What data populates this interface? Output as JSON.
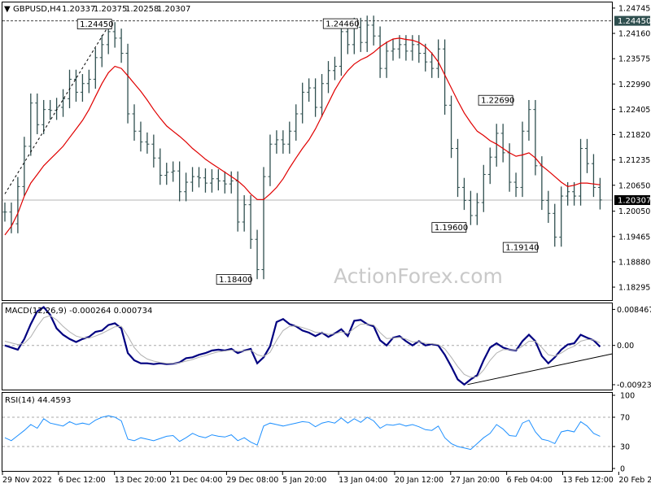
{
  "chart_data": [
    {
      "type": "bar",
      "panel": "price",
      "symbol_header": "GBPUSD,H4",
      "ohlc_header": [
        "1.20337",
        "1.20375",
        "1.20258",
        "1.20307"
      ],
      "y_ticks": [
        "1.24745",
        "1.24160",
        "1.23575",
        "1.22990",
        "1.22405",
        "1.21820",
        "1.21235",
        "1.20650",
        "1.20050",
        "1.19465",
        "1.18880",
        "1.18295"
      ],
      "ylim": [
        1.17995,
        1.24875
      ],
      "current_price": 1.20307,
      "current_label": "1.20307",
      "high_line_value": 1.2445,
      "high_line_label": "1.24450",
      "annotations": [
        {
          "text": "1.24450",
          "x": 16.5,
          "y": 1.2445
        },
        {
          "text": "1.24460",
          "x": 54.5,
          "y": 1.2446
        },
        {
          "text": "1.18400",
          "x": 38.0,
          "y": 1.184
        },
        {
          "text": "1.22690",
          "x": 78.5,
          "y": 1.2269
        },
        {
          "text": "1.19600",
          "x": 71.3,
          "y": 1.196
        },
        {
          "text": "1.19140",
          "x": 82.3,
          "y": 1.1914
        }
      ],
      "trendline": [
        [
          0,
          1.2045
        ],
        [
          16.5,
          1.2445
        ]
      ],
      "series": [
        {
          "name": "Close",
          "color": "#2f4f4f",
          "x": [
            0,
            1,
            2,
            3,
            4,
            5,
            6,
            7,
            8,
            9,
            10,
            11,
            12,
            13,
            14,
            15,
            16,
            17,
            18,
            19,
            20,
            21,
            22,
            23,
            24,
            25,
            26,
            27,
            28,
            29,
            30,
            31,
            32,
            33,
            34,
            35,
            36,
            37,
            38,
            39,
            40,
            41,
            42,
            43,
            44,
            45,
            46,
            47,
            48,
            49,
            50,
            51,
            52,
            53,
            54,
            55,
            56,
            57,
            58,
            59,
            60,
            61,
            62,
            63,
            64,
            65,
            66,
            67,
            68,
            69,
            70,
            71,
            72,
            73,
            74,
            75,
            76,
            77,
            78,
            79,
            80,
            81,
            82,
            83,
            84,
            85,
            86,
            87,
            88,
            89,
            90,
            91,
            92
          ],
          "y": [
            1.2003,
            1.1976,
            1.2062,
            1.2155,
            1.2255,
            1.2205,
            1.224,
            1.2238,
            1.2245,
            1.2265,
            1.231,
            1.228,
            1.23,
            1.231,
            1.236,
            1.239,
            1.242,
            1.2405,
            1.237,
            1.223,
            1.219,
            1.2165,
            1.216,
            1.2128,
            1.2088,
            1.2095,
            1.2098,
            1.205,
            1.2072,
            1.2085,
            1.2082,
            1.207,
            1.208,
            1.2075,
            1.2068,
            1.2075,
            1.198,
            1.202,
            1.194,
            1.187,
            1.2085,
            1.216,
            1.217,
            1.216,
            1.219,
            1.223,
            1.228,
            1.229,
            1.2245,
            1.23,
            1.233,
            1.234,
            1.242,
            1.239,
            1.243,
            1.2395,
            1.2435,
            1.241,
            1.2335,
            1.2375,
            1.238,
            1.239,
            1.2375,
            1.239,
            1.237,
            1.235,
            1.2335,
            1.238,
            1.225,
            1.215,
            1.206,
            1.203,
            1.1995,
            1.2025,
            1.209,
            1.213,
            1.2185,
            1.214,
            1.2072,
            1.206,
            1.219,
            1.224,
            1.211,
            1.203,
            1.2,
            1.1945,
            1.204,
            1.205,
            1.204,
            1.215,
            1.2115,
            1.206,
            1.2031
          ]
        }
      ],
      "ma_series": {
        "name": "MA",
        "color": "#e00000",
        "y": [
          1.195,
          1.197,
          1.2,
          1.204,
          1.207,
          1.209,
          1.211,
          1.2125,
          1.214,
          1.2155,
          1.2175,
          1.2195,
          1.2215,
          1.224,
          1.227,
          1.23,
          1.2325,
          1.234,
          1.2335,
          1.2318,
          1.23,
          1.2282,
          1.2262,
          1.224,
          1.222,
          1.2202,
          1.219,
          1.2178,
          1.2165,
          1.215,
          1.2138,
          1.2125,
          1.2115,
          1.2105,
          1.2095,
          1.2085,
          1.2075,
          1.2062,
          1.2045,
          1.2032,
          1.2032,
          1.2045,
          1.206,
          1.208,
          1.2105,
          1.2128,
          1.215,
          1.217,
          1.2195,
          1.2225,
          1.2255,
          1.2285,
          1.231,
          1.233,
          1.2345,
          1.2355,
          1.2362,
          1.2372,
          1.2385,
          1.2395,
          1.2403,
          1.2405,
          1.2402,
          1.24,
          1.2395,
          1.2385,
          1.237,
          1.235,
          1.232,
          1.229,
          1.226,
          1.2232,
          1.221,
          1.219,
          1.218,
          1.2168,
          1.216,
          1.215,
          1.214,
          1.2132,
          1.2135,
          1.214,
          1.2128,
          1.211,
          1.2098,
          1.2085,
          1.2072,
          1.2062,
          1.2065,
          1.207,
          1.207,
          1.2068,
          1.2066
        ]
      }
    },
    {
      "type": "line",
      "panel": "macd",
      "header": "MACD(12,26,9) -0.000264 0.000734",
      "y_ticks": [
        "0.008467",
        "0.00",
        "-0.009233"
      ],
      "ylim": [
        -0.01,
        0.0095
      ],
      "series": [
        {
          "name": "MACD",
          "color": "#000080",
          "y": [
            0.0,
            -0.0005,
            -0.001,
            0.0015,
            0.005,
            0.008,
            0.009,
            0.0072,
            0.004,
            0.0025,
            0.0015,
            0.0008,
            0.0015,
            0.002,
            0.0032,
            0.0035,
            0.0048,
            0.0052,
            0.004,
            -0.0018,
            -0.0035,
            -0.0042,
            -0.0042,
            -0.0044,
            -0.0042,
            -0.0044,
            -0.0043,
            -0.004,
            -0.003,
            -0.0028,
            -0.0022,
            -0.0018,
            -0.0012,
            -0.001,
            -0.0012,
            -0.0008,
            -0.0018,
            -0.0012,
            -0.0008,
            -0.0042,
            -0.0028,
            -0.0002,
            0.0055,
            0.0062,
            0.005,
            0.0045,
            0.0035,
            0.003,
            0.0022,
            0.003,
            0.002,
            0.0028,
            0.0038,
            0.0022,
            0.0058,
            0.006,
            0.005,
            0.0045,
            0.0012,
            0.0,
            0.0018,
            0.0022,
            0.001,
            0.0,
            0.001,
            0.0,
            0.0003,
            0.0,
            -0.0022,
            -0.005,
            -0.008,
            -0.0092,
            -0.008,
            -0.007,
            -0.0035,
            -0.0005,
            0.0005,
            -0.0005,
            -0.001,
            -0.0012,
            0.001,
            0.0025,
            0.001,
            -0.0025,
            -0.0042,
            -0.0028,
            -0.001,
            0.0002,
            0.0005,
            0.0025,
            0.0018,
            0.0012,
            -0.0003
          ]
        },
        {
          "name": "Signal",
          "color": "#b0b0b0",
          "y": [
            0.001,
            0.0006,
            0.0002,
            0.0005,
            0.002,
            0.0045,
            0.0065,
            0.007,
            0.006,
            0.0045,
            0.0032,
            0.0022,
            0.0018,
            0.0017,
            0.0022,
            0.0028,
            0.0036,
            0.0044,
            0.0045,
            0.0022,
            -0.0005,
            -0.0022,
            -0.0032,
            -0.0037,
            -0.004,
            -0.0042,
            -0.0042,
            -0.0041,
            -0.0037,
            -0.0033,
            -0.0028,
            -0.0024,
            -0.0019,
            -0.0015,
            -0.0013,
            -0.0011,
            -0.0014,
            -0.0013,
            -0.0011,
            -0.0022,
            -0.0026,
            -0.0016,
            0.0012,
            0.0035,
            0.0045,
            0.0046,
            0.0042,
            0.0037,
            0.0031,
            0.003,
            0.0026,
            0.0027,
            0.0032,
            0.0028,
            0.004,
            0.005,
            0.005,
            0.0048,
            0.003,
            0.0016,
            0.0017,
            0.0019,
            0.0015,
            0.0008,
            0.0009,
            0.0005,
            0.0004,
            0.0002,
            -0.0008,
            -0.0028,
            -0.005,
            -0.0068,
            -0.0075,
            -0.0074,
            -0.0058,
            -0.0035,
            -0.0018,
            -0.001,
            -0.001,
            -0.0011,
            -0.0002,
            0.001,
            0.001,
            -0.0005,
            -0.0022,
            -0.0025,
            -0.0018,
            -0.0008,
            -0.0002,
            0.001,
            0.0014,
            0.0013,
            0.0006
          ]
        }
      ],
      "trendline": [
        [
          71.5,
          -0.0092
        ],
        [
          92,
          -0.002
        ]
      ]
    },
    {
      "type": "line",
      "panel": "rsi",
      "header": "RSI(14) 44.4593",
      "y_ticks": [
        "100",
        "70",
        "30",
        "0"
      ],
      "ylim": [
        0,
        100
      ],
      "levels": [
        70,
        30
      ],
      "series": [
        {
          "name": "RSI",
          "color": "#1e90ff",
          "y": [
            42,
            38,
            45,
            52,
            60,
            55,
            68,
            62,
            60,
            58,
            64,
            60,
            62,
            60,
            66,
            70,
            72,
            70,
            65,
            40,
            38,
            42,
            40,
            38,
            41,
            44,
            45,
            37,
            42,
            48,
            44,
            42,
            46,
            44,
            43,
            46,
            38,
            42,
            36,
            32,
            58,
            62,
            60,
            58,
            60,
            62,
            64,
            63,
            57,
            62,
            64,
            62,
            69,
            62,
            68,
            63,
            70,
            65,
            55,
            60,
            59,
            61,
            58,
            60,
            57,
            53,
            52,
            58,
            42,
            34,
            30,
            28,
            26,
            34,
            42,
            48,
            60,
            54,
            45,
            44,
            62,
            66,
            50,
            40,
            38,
            34,
            50,
            52,
            50,
            64,
            58,
            48,
            44
          ]
        }
      ]
    }
  ],
  "x_axis_labels": [
    "29 Nov 2022",
    "6 Dec 12:00",
    "13 Dec 20:00",
    "21 Dec 04:00",
    "29 Dec 08:00",
    "5 Jan 20:00",
    "13 Jan 04:00",
    "20 Jan 12:00",
    "27 Jan 20:00",
    "6 Feb 04:00",
    "13 Feb 12:00",
    "20 Feb 20:00"
  ],
  "x_label_bars": [
    0,
    9,
    18,
    27,
    36,
    45,
    54,
    63,
    72,
    81,
    90,
    99
  ],
  "watermark": "ActionForex.com",
  "colors": {
    "price_bar": "#2f4f4f",
    "ma": "#e00000",
    "macd": "#000080",
    "signal": "#b0b0b0",
    "rsi": "#1e90ff",
    "grid": "#a9a9a9"
  }
}
